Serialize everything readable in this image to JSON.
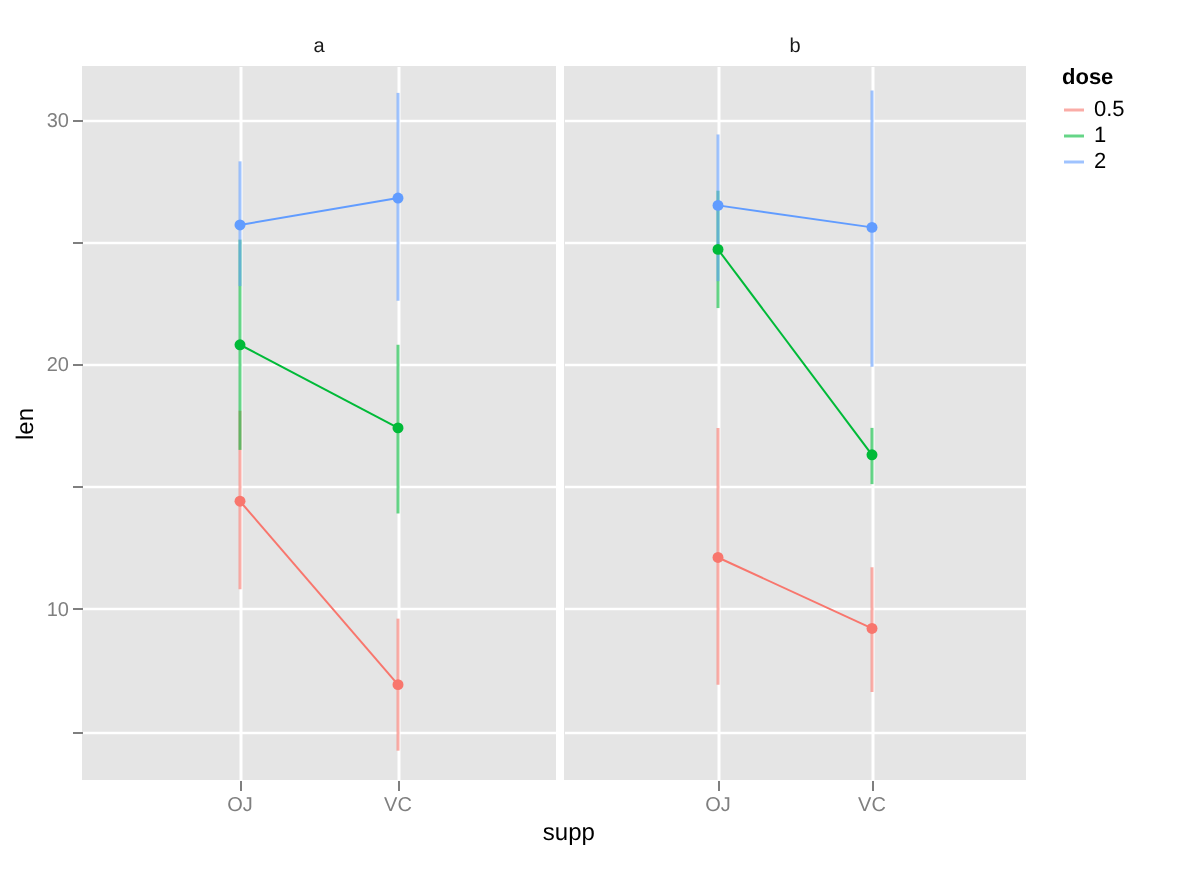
{
  "chart_data": [
    {
      "type": "line",
      "title": "a",
      "xlabel": "supp",
      "ylabel": "len",
      "categories": [
        "OJ",
        "VC"
      ],
      "ylim": [
        3,
        32.2
      ],
      "yticks": [
        {
          "value": 5,
          "label": null
        },
        10,
        {
          "value": 15,
          "label": null
        },
        20,
        {
          "value": 25,
          "label": null
        },
        30
      ],
      "grid": true,
      "marker": "circle",
      "series": [
        {
          "color": "#f8766d",
          "values": [
            14.4,
            6.9
          ],
          "errors": [
            [
              10.8,
              18.1
            ],
            [
              4.2,
              9.6
            ]
          ]
        },
        {
          "color": "#00ba38",
          "values": [
            20.8,
            17.4
          ],
          "errors": [
            [
              16.5,
              25.1
            ],
            [
              13.9,
              20.8
            ]
          ]
        },
        {
          "color": "#619cff",
          "values": [
            25.7,
            26.8
          ],
          "errors": [
            [
              23.2,
              28.3
            ],
            [
              22.6,
              31.1
            ]
          ]
        }
      ]
    },
    {
      "type": "line",
      "title": "b",
      "categories": [
        "OJ",
        "VC"
      ],
      "ylim": [
        3,
        32.2
      ],
      "yticks": [
        {
          "value": 5,
          "label": null
        },
        10,
        {
          "value": 15,
          "label": null
        },
        20,
        {
          "value": 25,
          "label": null
        },
        30
      ],
      "tick_labels": "x",
      "grid": true,
      "marker": "circle",
      "legend": "right",
      "legend_title": "dose",
      "series": [
        {
          "name": "0.5",
          "color": "#f8766d",
          "values": [
            12.1,
            9.2
          ],
          "errors": [
            [
              6.9,
              17.4
            ],
            [
              6.6,
              11.7
            ]
          ]
        },
        {
          "name": "1",
          "color": "#00ba38",
          "values": [
            24.7,
            16.3
          ],
          "errors": [
            [
              22.3,
              27.1
            ],
            [
              15.1,
              17.4
            ]
          ]
        },
        {
          "name": "2",
          "color": "#619cff",
          "values": [
            26.5,
            25.6
          ],
          "errors": [
            [
              23.4,
              29.4
            ],
            [
              19.9,
              31.2
            ]
          ]
        }
      ]
    }
  ]
}
